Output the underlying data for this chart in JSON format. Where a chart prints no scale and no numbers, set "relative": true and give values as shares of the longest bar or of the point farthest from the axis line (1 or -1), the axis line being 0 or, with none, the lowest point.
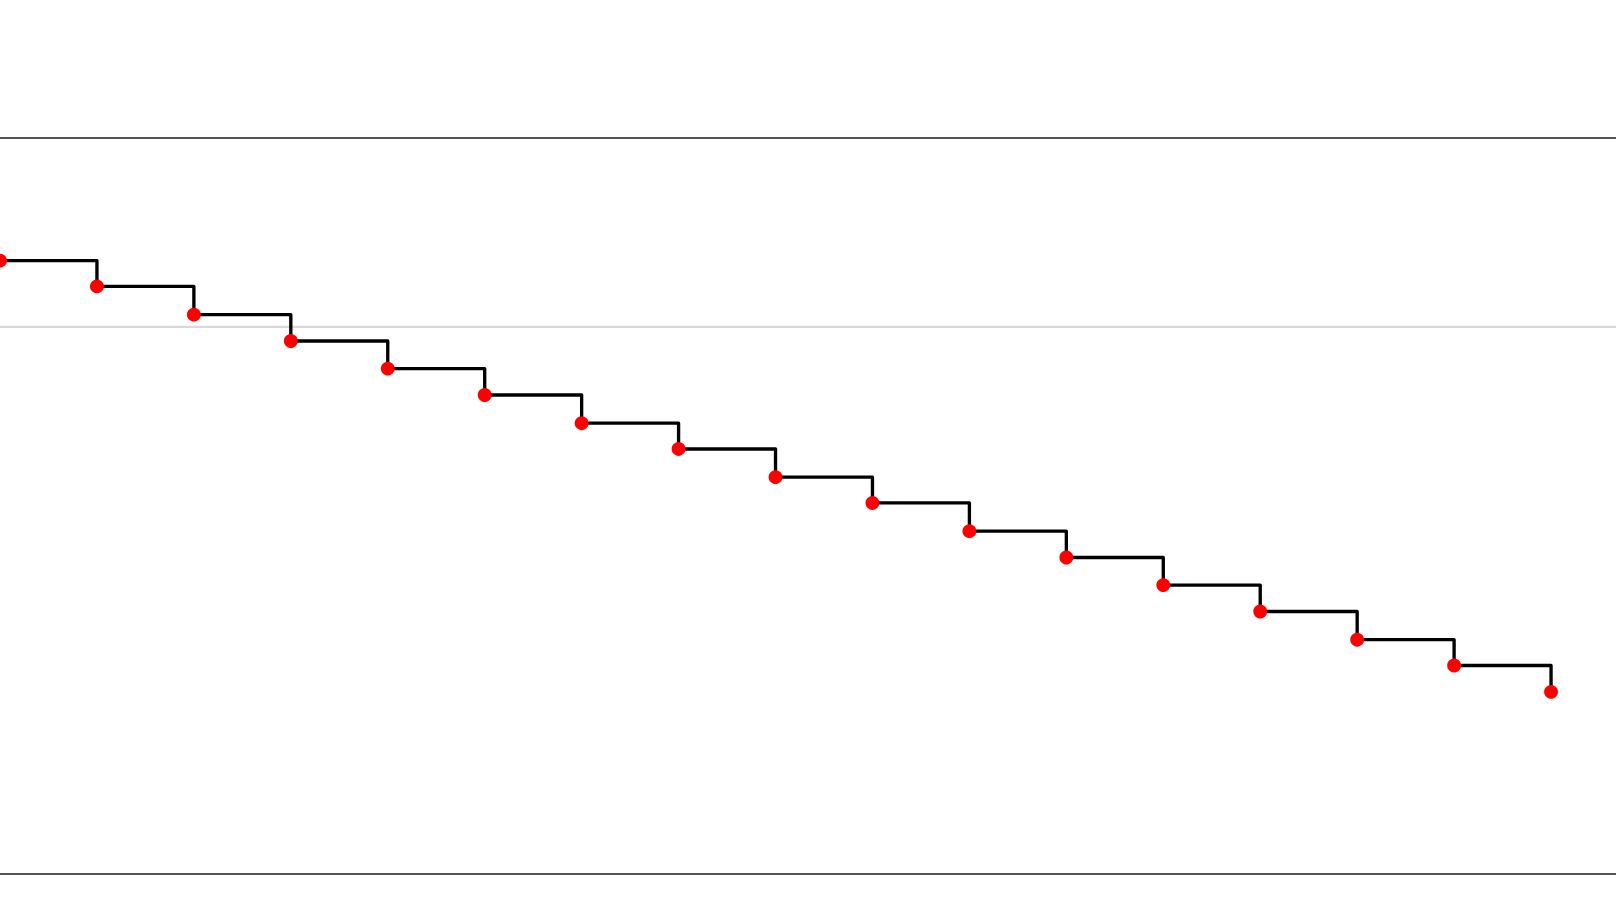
{
  "chart_data": {
    "type": "step",
    "relative": true,
    "categories": [
      null,
      null,
      null,
      null,
      null,
      null,
      null,
      null,
      null,
      null,
      null,
      null,
      null,
      null,
      null,
      null,
      null
    ],
    "series": [
      {
        "color": "#000000",
        "colors": [
          "#ff0000",
          "#ff0000",
          "#ff0000",
          "#ff0000",
          "#ff0000",
          "#ff0000",
          "#ff0000",
          "#ff0000",
          "#ff0000",
          "#ff0000",
          "#ff0000",
          "#ff0000",
          "#ff0000",
          "#ff0000",
          "#ff0000",
          "#ff0000",
          "#ff0000"
        ],
        "values": [
          1.0,
          0.958,
          0.912,
          0.869,
          0.824,
          0.781,
          0.735,
          0.693,
          0.647,
          0.605,
          0.559,
          0.516,
          0.471,
          0.428,
          0.382,
          0.34,
          0.297
        ]
      }
    ],
    "marker": "circle",
    "line_style": "solid",
    "grid": false,
    "legend": false,
    "ref_lines": [
      {
        "axis": "y",
        "value": 0.892,
        "label": null,
        "color": "#d9d9d9"
      }
    ]
  }
}
